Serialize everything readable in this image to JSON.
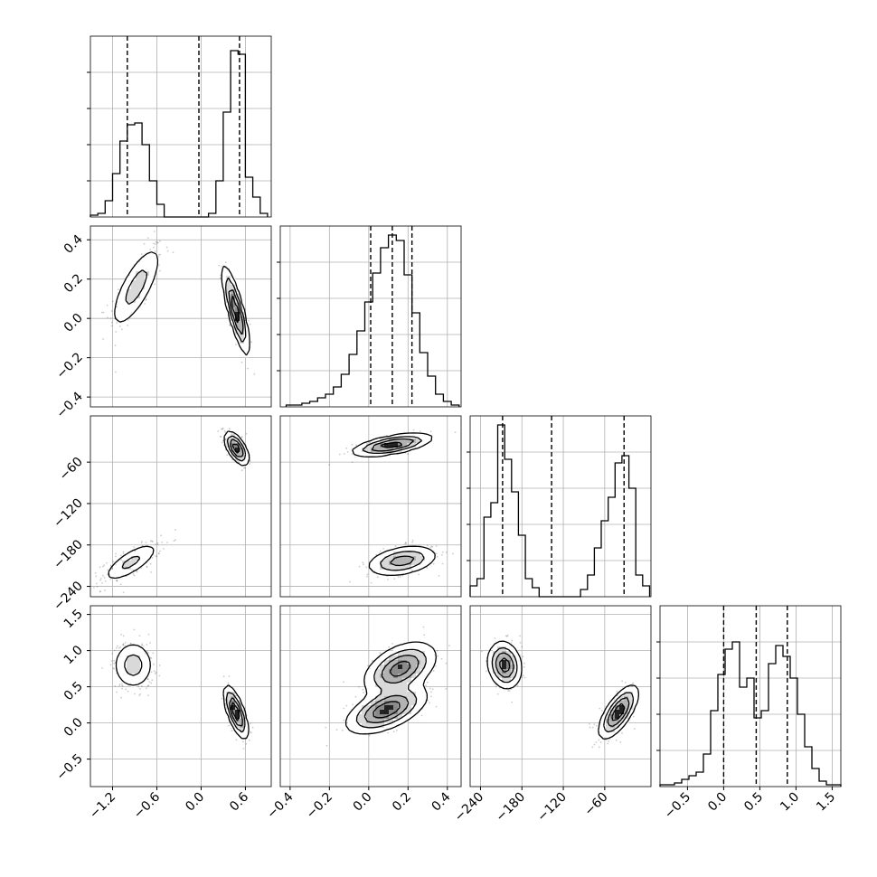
{
  "chart_data": {
    "type": "corner",
    "grid": true,
    "colors": {
      "ink": "#000000",
      "grid": "#b0b0b0",
      "points": "#555555",
      "frame": "#000000"
    },
    "parameters": [
      {
        "range": [
          -1.5,
          0.95
        ],
        "ticks": [
          -1.2,
          -0.6,
          0.0,
          0.6
        ],
        "tick_labels": [
          "−1.2",
          "−0.6",
          "0.0",
          "0.6"
        ],
        "quantiles": [
          -1.0,
          -0.03,
          0.52
        ]
      },
      {
        "range": [
          -0.45,
          0.47
        ],
        "ticks": [
          -0.4,
          -0.2,
          0.0,
          0.2,
          0.4
        ],
        "tick_labels": [
          "−0.4",
          "−0.2",
          "0.0",
          "0.2",
          "0.4"
        ],
        "quantiles": [
          0.01,
          0.12,
          0.22
        ]
      },
      {
        "range": [
          -255,
          7
        ],
        "ticks": [
          -240,
          -180,
          -120,
          -60
        ],
        "tick_labels": [
          "−240",
          "−180",
          "−120",
          "−60"
        ],
        "quantiles": [
          -208,
          -137,
          -32
        ]
      },
      {
        "range": [
          -0.88,
          1.62
        ],
        "ticks": [
          -0.5,
          0.0,
          0.5,
          1.0,
          1.5
        ],
        "tick_labels": [
          "−0.5",
          "0.0",
          "0.5",
          "1.0",
          "1.5"
        ],
        "quantiles": [
          0.0,
          0.45,
          0.88
        ]
      }
    ],
    "histograms": [
      {
        "edges": [
          -1.5,
          -1.4,
          -1.3,
          -1.2,
          -1.1,
          -1.0,
          -0.9,
          -0.8,
          -0.7,
          -0.6,
          -0.5,
          -0.4,
          -0.3,
          -0.2,
          -0.1,
          0.0,
          0.1,
          0.2,
          0.3,
          0.4,
          0.5,
          0.6,
          0.7,
          0.8,
          0.9
        ],
        "counts": [
          0.01,
          0.02,
          0.09,
          0.24,
          0.42,
          0.51,
          0.52,
          0.4,
          0.2,
          0.07,
          0.0,
          0.0,
          0.0,
          0.0,
          0.0,
          0.0,
          0.02,
          0.2,
          0.58,
          0.92,
          0.9,
          0.22,
          0.11,
          0.02
        ]
      },
      {
        "edges": [
          -0.42,
          -0.38,
          -0.34,
          -0.3,
          -0.26,
          -0.22,
          -0.18,
          -0.14,
          -0.1,
          -0.06,
          -0.02,
          0.02,
          0.06,
          0.1,
          0.14,
          0.18,
          0.22,
          0.26,
          0.3,
          0.34,
          0.38,
          0.42,
          0.46
        ],
        "counts": [
          0.01,
          0.01,
          0.02,
          0.03,
          0.05,
          0.07,
          0.11,
          0.18,
          0.29,
          0.42,
          0.58,
          0.74,
          0.88,
          0.95,
          0.92,
          0.73,
          0.52,
          0.3,
          0.17,
          0.07,
          0.03,
          0.01
        ]
      },
      {
        "edges": [
          -255,
          -245,
          -235,
          -225,
          -215,
          -205,
          -195,
          -185,
          -175,
          -165,
          -155,
          -145,
          -135,
          -125,
          -115,
          -105,
          -95,
          -85,
          -75,
          -65,
          -55,
          -45,
          -35,
          -25,
          -15,
          -5,
          5
        ],
        "counts": [
          0.06,
          0.1,
          0.44,
          0.52,
          0.95,
          0.76,
          0.58,
          0.34,
          0.1,
          0.05,
          0.0,
          0.0,
          0.0,
          0.0,
          0.0,
          0.0,
          0.04,
          0.12,
          0.27,
          0.42,
          0.55,
          0.74,
          0.78,
          0.6,
          0.12,
          0.06
        ]
      },
      {
        "edges": [
          -0.88,
          -0.78,
          -0.68,
          -0.58,
          -0.48,
          -0.38,
          -0.28,
          -0.18,
          -0.08,
          0.02,
          0.12,
          0.22,
          0.32,
          0.42,
          0.52,
          0.62,
          0.72,
          0.82,
          0.92,
          1.02,
          1.12,
          1.22,
          1.32,
          1.42,
          1.52,
          1.62
        ],
        "counts": [
          0.01,
          0.01,
          0.02,
          0.04,
          0.06,
          0.08,
          0.18,
          0.42,
          0.62,
          0.76,
          0.8,
          0.55,
          0.6,
          0.38,
          0.42,
          0.68,
          0.78,
          0.72,
          0.6,
          0.4,
          0.22,
          0.1,
          0.03,
          0.01,
          0.01
        ]
      }
    ],
    "modes": {
      "1-0": [
        {
          "c": [
            -0.88,
            0.16
          ],
          "s": [
            0.18,
            0.11
          ],
          "rho": 0.75,
          "w": 0.5
        },
        {
          "c": [
            0.47,
            0.04
          ],
          "s": [
            0.09,
            0.11
          ],
          "rho": -0.82,
          "w": 0.5
        }
      ],
      "2-0": [
        {
          "c": [
            -0.95,
            -205
          ],
          "s": [
            0.2,
            15
          ],
          "rho": 0.75,
          "w": 0.5
        },
        {
          "c": [
            0.48,
            -40
          ],
          "s": [
            0.08,
            12
          ],
          "rho": -0.6,
          "w": 0.5
        }
      ],
      "2-1": [
        {
          "c": [
            0.12,
            -35
          ],
          "s": [
            0.1,
            8
          ],
          "rho": 0.6,
          "w": 0.5
        },
        {
          "c": [
            0.17,
            -203
          ],
          "s": [
            0.09,
            11
          ],
          "rho": 0.35,
          "w": 0.5
        }
      ],
      "3-0": [
        {
          "c": [
            -0.92,
            0.8
          ],
          "s": [
            0.14,
            0.17
          ],
          "rho": 0.0,
          "w": 0.5
        },
        {
          "c": [
            0.47,
            0.15
          ],
          "s": [
            0.08,
            0.18
          ],
          "rho": -0.7,
          "w": 0.5
        }
      ],
      "3-1": [
        {
          "c": [
            0.16,
            0.75
          ],
          "s": [
            0.09,
            0.18
          ],
          "rho": 0.45,
          "w": 0.5
        },
        {
          "c": [
            0.09,
            0.18
          ],
          "s": [
            0.1,
            0.16
          ],
          "rho": 0.55,
          "w": 0.5
        }
      ],
      "3-2": [
        {
          "c": [
            -205,
            0.8
          ],
          "s": [
            12,
            0.16
          ],
          "rho": -0.15,
          "w": 0.5
        },
        {
          "c": [
            -40,
            0.15
          ],
          "s": [
            14,
            0.18
          ],
          "rho": 0.7,
          "w": 0.5
        }
      ]
    }
  }
}
